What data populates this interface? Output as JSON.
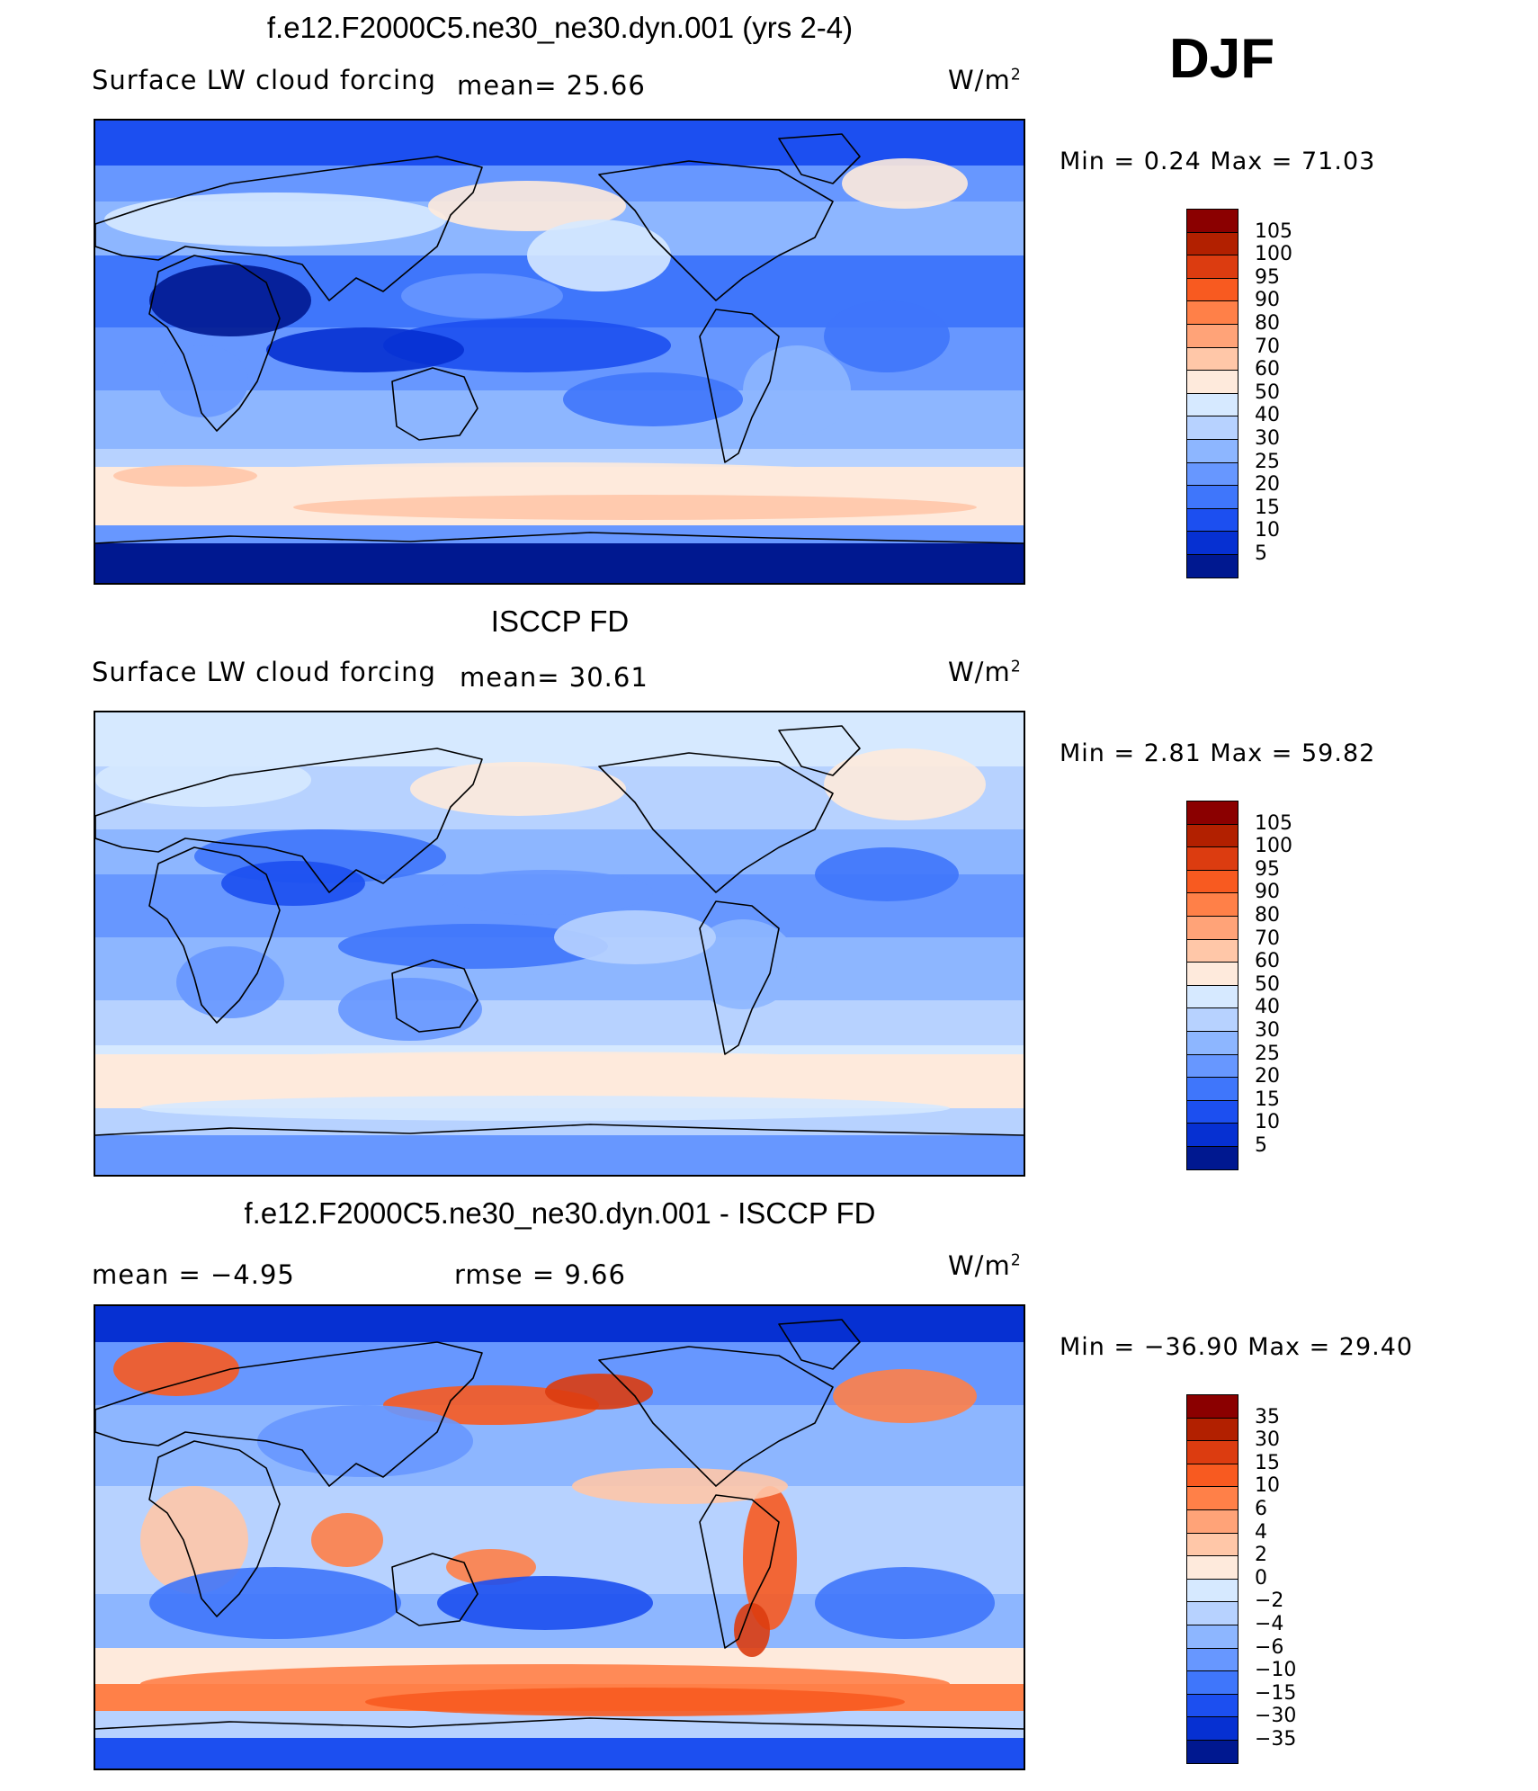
{
  "season": "DJF",
  "panels": [
    {
      "id": "model",
      "title": "f.e12.F2000C5.ne30_ne30.dyn.001 (yrs 2-4)",
      "variable": "Surface LW cloud forcing",
      "stat1": "mean=   25.66",
      "stat2": "",
      "units": "W/m",
      "units_sup": "2",
      "minmax": "Min =    0.24  Max =   71.03",
      "colorbar": {
        "labels": [
          "105",
          "100",
          "95",
          "90",
          "80",
          "70",
          "60",
          "50",
          "40",
          "30",
          "25",
          "20",
          "15",
          "10",
          "5"
        ],
        "colors": [
          "#8b0000",
          "#b22000",
          "#dc3c10",
          "#f85a20",
          "#ff8048",
          "#ffa378",
          "#ffc7a8",
          "#feeadc",
          "#d6e9ff",
          "#b7d2ff",
          "#8db6ff",
          "#6797ff",
          "#3f76fb",
          "#1c4ff0",
          "#0630d2",
          "#001890"
        ]
      },
      "map_palette": [
        "#001890",
        "#0630d2",
        "#1c4ff0",
        "#3f76fb",
        "#6797ff",
        "#8db6ff",
        "#b7d2ff",
        "#d6e9ff",
        "#feeadc",
        "#ffc7a8"
      ]
    },
    {
      "id": "obs",
      "title": "ISCCP FD",
      "variable": "Surface LW cloud forcing",
      "stat1": "mean=   30.61",
      "stat2": "",
      "units": "W/m",
      "units_sup": "2",
      "minmax": "Min =    2.81  Max =   59.82",
      "colorbar": {
        "labels": [
          "105",
          "100",
          "95",
          "90",
          "80",
          "70",
          "60",
          "50",
          "40",
          "30",
          "25",
          "20",
          "15",
          "10",
          "5"
        ],
        "colors": [
          "#8b0000",
          "#b22000",
          "#dc3c10",
          "#f85a20",
          "#ff8048",
          "#ffa378",
          "#ffc7a8",
          "#feeadc",
          "#d6e9ff",
          "#b7d2ff",
          "#8db6ff",
          "#6797ff",
          "#3f76fb",
          "#1c4ff0",
          "#0630d2",
          "#001890"
        ]
      },
      "map_palette": [
        "#0630d2",
        "#1c4ff0",
        "#3f76fb",
        "#6797ff",
        "#8db6ff",
        "#b7d2ff",
        "#d6e9ff",
        "#feeadc"
      ]
    },
    {
      "id": "diff",
      "title": "f.e12.F2000C5.ne30_ne30.dyn.001 - ISCCP FD",
      "variable": "",
      "stat1": "mean =   −4.95",
      "stat2": "rmse =    9.66",
      "units": "W/m",
      "units_sup": "2",
      "minmax": "Min = −36.90  Max =   29.40",
      "colorbar": {
        "labels": [
          "35",
          "30",
          "15",
          "10",
          "6",
          "4",
          "2",
          "0",
          "−2",
          "−4",
          "−6",
          "−10",
          "−15",
          "−30",
          "−35"
        ],
        "colors": [
          "#8b0000",
          "#b22000",
          "#dc3c10",
          "#f85a20",
          "#ff8048",
          "#ffa378",
          "#ffc7a8",
          "#feeadc",
          "#d6e9ff",
          "#b7d2ff",
          "#8db6ff",
          "#6797ff",
          "#3f76fb",
          "#1c4ff0",
          "#0630d2",
          "#001890"
        ]
      },
      "map_palette": [
        "#001890",
        "#0630d2",
        "#1c4ff0",
        "#3f76fb",
        "#6797ff",
        "#8db6ff",
        "#b7d2ff",
        "#d6e9ff",
        "#feeadc",
        "#ffc7a8",
        "#ff8048",
        "#f85a20",
        "#dc3c10"
      ]
    }
  ]
}
